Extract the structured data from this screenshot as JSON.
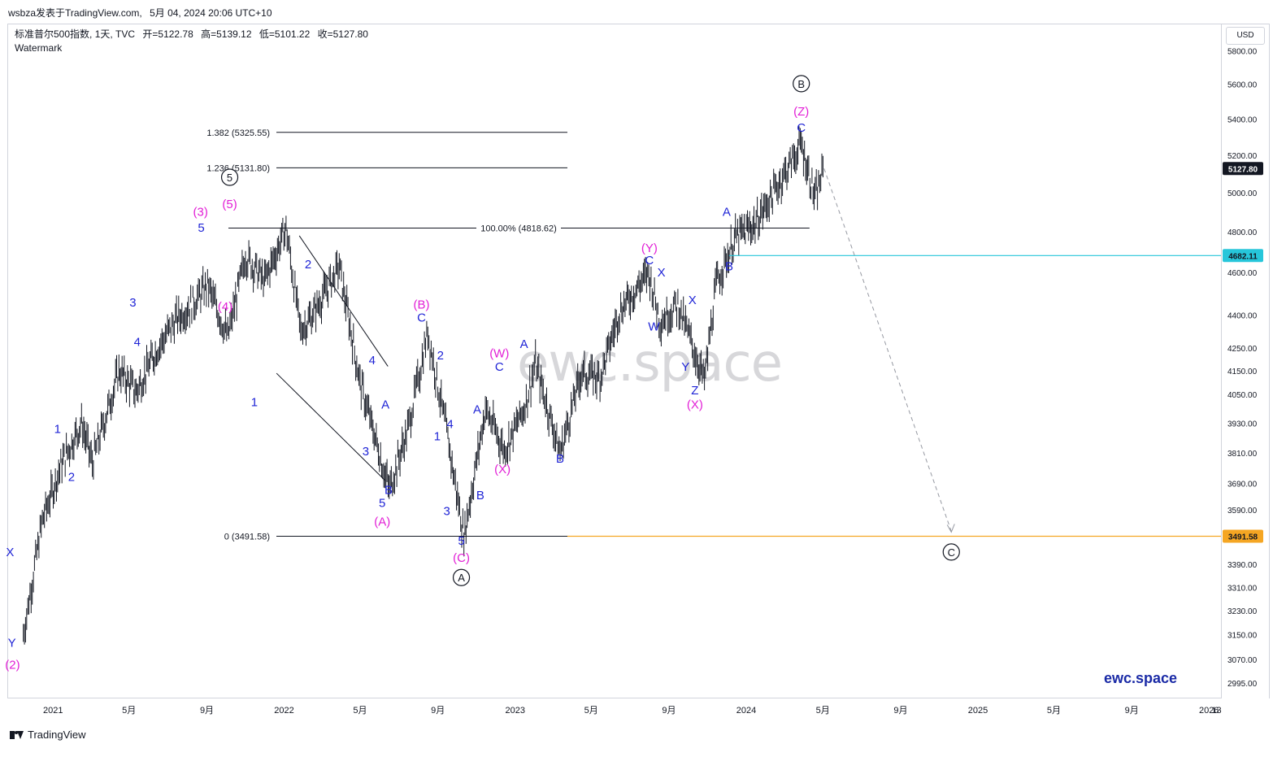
{
  "header": {
    "publisher": "wsbza发表于TradingView.com,",
    "datetime": "5月 04, 2024 20:06 UTC+10"
  },
  "legend": {
    "symbol": "标准普尔500指数, 1天, TVC",
    "open": "开=5122.78",
    "high": "高=5139.12",
    "low": "低=5101.22",
    "close": "收=5127.80",
    "indicator": "Watermark"
  },
  "axis": {
    "currency": "USD",
    "price_ticks": [
      "5800.00",
      "5600.00",
      "5400.00",
      "5200.00",
      "5000.00",
      "4800.00",
      "4600.00",
      "4400.00",
      "4250.00",
      "4150.00",
      "4050.00",
      "3930.00",
      "3810.00",
      "3690.00",
      "3590.00",
      "3490.00",
      "3390.00",
      "3310.00",
      "3230.00",
      "3150.00",
      "3070.00",
      "2995.00"
    ],
    "time_ticks": [
      "2021",
      "5月",
      "9月",
      "2022",
      "5月",
      "9月",
      "2023",
      "5月",
      "9月",
      "2024",
      "5月",
      "9月",
      "2025",
      "5月",
      "9月",
      "2026",
      "13"
    ]
  },
  "price_badges": {
    "last": "5127.80",
    "cyan": "4682.11",
    "orange": "3491.58"
  },
  "colors": {
    "candles": "#131722",
    "wave_blue": "#1f24d6",
    "wave_magenta": "#e21fd6",
    "cyan_line": "#26c6da",
    "orange_line": "#f5a623",
    "fib_line": "#131722"
  },
  "fib_levels": [
    {
      "label": "1.382 (5325.55)",
      "price": 5325.55
    },
    {
      "label": "1.236 (5131.80)",
      "price": 5131.8
    },
    {
      "label": "100.00% (4818.62)",
      "price": 4818.62
    },
    {
      "label": "0 (3491.58)",
      "price": 3491.58
    }
  ],
  "watermark_text": "ewc.space",
  "brand_text": "ewc.space",
  "footer": {
    "brand": "TradingView"
  },
  "chart_data": {
    "type": "line",
    "title": "标准普尔500指数, 1天, TVC",
    "y_scale": "log",
    "ylim": [
      2950,
      5900
    ],
    "x": [
      "2020-11-15",
      "2020-12-15",
      "2021-01-15",
      "2021-02-15",
      "2021-03-04",
      "2021-04-15",
      "2021-05-12",
      "2021-06-15",
      "2021-07-15",
      "2021-08-15",
      "2021-09-02",
      "2021-10-04",
      "2021-11-01",
      "2021-12-01",
      "2022-01-04",
      "2022-01-27",
      "2022-02-15",
      "2022-03-29",
      "2022-05-01",
      "2022-06-16",
      "2022-07-15",
      "2022-08-16",
      "2022-09-15",
      "2022-10-12",
      "2022-11-15",
      "2022-12-15",
      "2023-01-15",
      "2023-02-02",
      "2023-03-13",
      "2023-04-15",
      "2023-05-15",
      "2023-06-15",
      "2023-07-31",
      "2023-08-18",
      "2023-09-15",
      "2023-10-27",
      "2023-11-15",
      "2023-12-15",
      "2024-01-15",
      "2024-02-15",
      "2024-03-28",
      "2024-04-19",
      "2024-05-03"
    ],
    "series": [
      {
        "values": [
          3150,
          3550,
          3770,
          3930,
          3770,
          4150,
          4060,
          4250,
          4380,
          4470,
          4540,
          4300,
          4680,
          4560,
          4818,
          4330,
          4400,
          4630,
          4100,
          3667,
          3900,
          4320,
          3890,
          3491,
          3990,
          3820,
          3990,
          4180,
          3810,
          4140,
          4120,
          4420,
          4600,
          4370,
          4450,
          4110,
          4550,
          4770,
          4840,
          5010,
          5260,
          4970,
          5127.8
        ]
      }
    ],
    "projection": {
      "from": {
        "x": "2024-05-03",
        "y": 5127.8
      },
      "to": {
        "x": "2024-11-20",
        "y": 3491.58
      }
    },
    "horizontal_lines": [
      4682.11,
      3491.58
    ],
    "wave_labels": [
      {
        "text": "X",
        "x": "2020-10-25",
        "y": 3420,
        "color": "blue"
      },
      {
        "text": "Y",
        "x": "2020-10-28",
        "y": 3110,
        "color": "blue"
      },
      {
        "text": "(2)",
        "x": "2020-10-29",
        "y": 3040,
        "color": "magenta"
      },
      {
        "text": "1",
        "x": "2021-01-08",
        "y": 3890,
        "color": "blue"
      },
      {
        "text": "2",
        "x": "2021-01-30",
        "y": 3700,
        "color": "blue"
      },
      {
        "text": "3",
        "x": "2021-05-07",
        "y": 4440,
        "color": "blue"
      },
      {
        "text": "4",
        "x": "2021-05-14",
        "y": 4260,
        "color": "blue"
      },
      {
        "text": "5",
        "x": "2021-08-23",
        "y": 4800,
        "color": "blue"
      },
      {
        "text": "(3)",
        "x": "2021-08-22",
        "y": 4880,
        "color": "magenta"
      },
      {
        "text": "(4)",
        "x": "2021-09-30",
        "y": 4420,
        "color": "magenta"
      },
      {
        "text": "(5)",
        "x": "2021-10-07",
        "y": 4920,
        "color": "magenta"
      },
      {
        "text": "5",
        "x": "2021-10-07",
        "y": 5060,
        "color": "black",
        "circled": true
      },
      {
        "text": "1",
        "x": "2021-11-15",
        "y": 4000,
        "color": "blue"
      },
      {
        "text": "2",
        "x": "2022-02-08",
        "y": 4620,
        "color": "blue"
      },
      {
        "text": "3",
        "x": "2022-05-10",
        "y": 3800,
        "color": "blue"
      },
      {
        "text": "4",
        "x": "2022-05-20",
        "y": 4180,
        "color": "blue"
      },
      {
        "text": "5",
        "x": "2022-06-05",
        "y": 3600,
        "color": "blue"
      },
      {
        "text": "(A)",
        "x": "2022-06-05",
        "y": 3530,
        "color": "magenta"
      },
      {
        "text": "A",
        "x": "2022-06-10",
        "y": 3990,
        "color": "blue"
      },
      {
        "text": "B",
        "x": "2022-06-15",
        "y": 3650,
        "color": "blue"
      },
      {
        "text": "C",
        "x": "2022-08-06",
        "y": 4370,
        "color": "blue"
      },
      {
        "text": "(B)",
        "x": "2022-08-06",
        "y": 4430,
        "color": "magenta"
      },
      {
        "text": "1",
        "x": "2022-08-31",
        "y": 3860,
        "color": "blue"
      },
      {
        "text": "2",
        "x": "2022-09-05",
        "y": 4200,
        "color": "blue"
      },
      {
        "text": "3",
        "x": "2022-09-15",
        "y": 3570,
        "color": "blue"
      },
      {
        "text": "4",
        "x": "2022-09-20",
        "y": 3910,
        "color": "blue"
      },
      {
        "text": "5",
        "x": "2022-10-08",
        "y": 3460,
        "color": "blue"
      },
      {
        "text": "(C)",
        "x": "2022-10-08",
        "y": 3400,
        "color": "magenta"
      },
      {
        "text": "A",
        "x": "2022-10-08",
        "y": 3330,
        "color": "black",
        "circled": true
      },
      {
        "text": "A",
        "x": "2022-11-02",
        "y": 3970,
        "color": "blue"
      },
      {
        "text": "B",
        "x": "2022-11-07",
        "y": 3630,
        "color": "blue"
      },
      {
        "text": "C",
        "x": "2022-12-07",
        "y": 4150,
        "color": "blue"
      },
      {
        "text": "(W)",
        "x": "2022-12-07",
        "y": 4210,
        "color": "magenta"
      },
      {
        "text": "(X)",
        "x": "2022-12-12",
        "y": 3730,
        "color": "magenta"
      },
      {
        "text": "A",
        "x": "2023-01-15",
        "y": 4250,
        "color": "blue"
      },
      {
        "text": "B",
        "x": "2023-03-13",
        "y": 3770,
        "color": "blue"
      },
      {
        "text": "C",
        "x": "2023-08-01",
        "y": 4640,
        "color": "blue"
      },
      {
        "text": "(Y)",
        "x": "2023-08-01",
        "y": 4700,
        "color": "magenta"
      },
      {
        "text": "W",
        "x": "2023-08-08",
        "y": 4330,
        "color": "blue"
      },
      {
        "text": "X",
        "x": "2023-08-20",
        "y": 4580,
        "color": "blue"
      },
      {
        "text": "Y",
        "x": "2023-09-27",
        "y": 4150,
        "color": "blue"
      },
      {
        "text": "X",
        "x": "2023-10-08",
        "y": 4450,
        "color": "blue"
      },
      {
        "text": "Z",
        "x": "2023-10-12",
        "y": 4050,
        "color": "blue"
      },
      {
        "text": "(X)",
        "x": "2023-10-12",
        "y": 3990,
        "color": "magenta"
      },
      {
        "text": "A",
        "x": "2023-12-01",
        "y": 4880,
        "color": "blue"
      },
      {
        "text": "B",
        "x": "2023-12-05",
        "y": 4610,
        "color": "blue"
      },
      {
        "text": "C",
        "x": "2024-03-28",
        "y": 5330,
        "color": "blue"
      },
      {
        "text": "(Z)",
        "x": "2024-03-28",
        "y": 5420,
        "color": "magenta"
      },
      {
        "text": "B",
        "x": "2024-03-28",
        "y": 5580,
        "color": "black",
        "circled": true
      },
      {
        "text": "C",
        "x": "2024-11-20",
        "y": 3420,
        "color": "black",
        "circled": true
      }
    ]
  }
}
